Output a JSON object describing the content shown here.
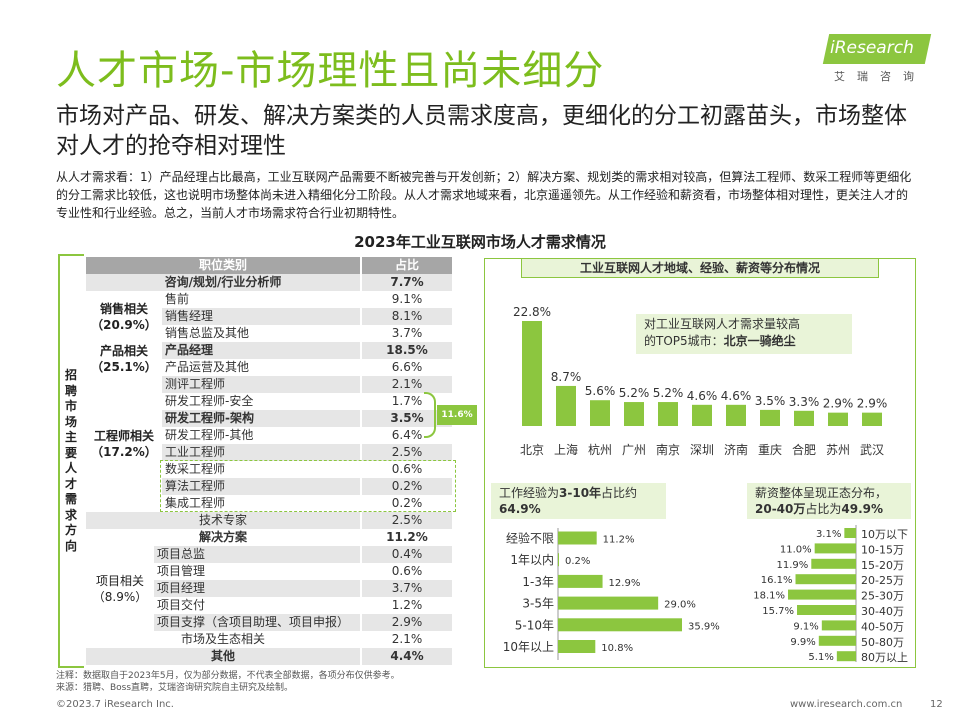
{
  "page": {
    "title": "人才市场-市场理性且尚未细分",
    "subtitle": "市场对产品、研发、解决方案类的人员需求度高，更细化的分工初露苗头，市场整体对人才的抢夺相对理性",
    "description": "从人才需求看：1）产品经理占比最高，工业互联网产品需要不断被完善与开发创新；2）解决方案、规划类的需求相对较高，但算法工程师、数采工程师等更细化的分工需求比较低，这也说明市场整体尚未进入精细化分工阶段。从人才需求地域来看，北京遥遥领先。从工作经验和薪资看，市场整体相对理性，更关注人才的专业性和行业经验。总之，当前人才市场需求符合行业初期特性。",
    "main_title": "2023年工业互联网市场人才需求情况",
    "note": "注释：数据取自于2023年5月，仅为部分数据，不代表全部数据，各项分布仅供参考。",
    "source": "来源：猎聘、Boss直聘，艾瑞咨询研究院自主研究及绘制。",
    "footer_left": "©2023.7 iResearch Inc.",
    "footer_right": "www.iresearch.com.cn",
    "page_number": "12",
    "logo_text": "iResearch",
    "logo_cn": "艾瑞咨询",
    "accent_color": "#8cc63f",
    "title_color": "#7dbd1d"
  },
  "table": {
    "side_label": "招聘市场主要人才需求方向",
    "header_category": "职位类别",
    "header_share": "占比",
    "groups": [
      {
        "label": "销售相关\n（20.9%）"
      },
      {
        "label": "产品相关\n（25.1%）"
      },
      {
        "label": "工程师相关\n（17.2%）"
      },
      {
        "label": "项目相关\n（8.9%）"
      }
    ],
    "rows": [
      {
        "name": "咨询/规划/行业分析师",
        "value": "7.7%"
      },
      {
        "name": "售前",
        "value": "9.1%"
      },
      {
        "name": "销售经理",
        "value": "8.1%"
      },
      {
        "name": "销售总监及其他",
        "value": "3.7%"
      },
      {
        "name": "产品经理",
        "value": "18.5%"
      },
      {
        "name": "产品运营及其他",
        "value": "6.6%"
      },
      {
        "name": "测评工程师",
        "value": "2.1%"
      },
      {
        "name": "研发工程师-安全",
        "value": "1.7%"
      },
      {
        "name": "研发工程师-架构",
        "value": "3.5%"
      },
      {
        "name": "研发工程师-其他",
        "value": "6.4%"
      },
      {
        "name": "工业工程师",
        "value": "2.5%"
      },
      {
        "name": "数采工程师",
        "value": "0.6%"
      },
      {
        "name": "算法工程师",
        "value": "0.2%"
      },
      {
        "name": "集成工程师",
        "value": "0.2%"
      },
      {
        "name": "技术专家",
        "value": "2.5%"
      },
      {
        "name": "解决方案",
        "value": "11.2%"
      },
      {
        "name": "项目总监",
        "value": "0.4%"
      },
      {
        "name": "项目管理",
        "value": "0.6%"
      },
      {
        "name": "项目经理",
        "value": "3.7%"
      },
      {
        "name": "项目交付",
        "value": "1.2%"
      },
      {
        "name": "项目支撑（含项目助理、项目申报）",
        "value": "2.9%"
      },
      {
        "name": "市场及生态相关",
        "value": "2.1%"
      },
      {
        "name": "其他",
        "value": "4.4%"
      }
    ],
    "brace_label": "11.6%"
  },
  "chart_data": [
    {
      "type": "bar",
      "title": "工业互联网人才地域、经验、薪资等分布情况",
      "categories": [
        "北京",
        "上海",
        "杭州",
        "广州",
        "南京",
        "深圳",
        "济南",
        "重庆",
        "合肥",
        "苏州",
        "武汉"
      ],
      "values": [
        22.8,
        8.7,
        5.6,
        5.2,
        5.2,
        4.6,
        4.6,
        3.5,
        3.3,
        2.9,
        2.9
      ],
      "unit": "%",
      "annotation": {
        "line1": "对工业互联网人才需求量较高",
        "line2_prefix": "的TOP5城市：",
        "line2_bold": "北京一骑绝尘"
      },
      "bar_color": "#8cc63f"
    },
    {
      "type": "bar",
      "orientation": "horizontal",
      "title_prefix": "工作经验为",
      "title_bold1": "3-10年",
      "title_mid": "占比约",
      "title_bold2": "64.9%",
      "categories": [
        "经验不限",
        "1年以内",
        "1-3年",
        "3-5年",
        "5-10年",
        "10年以上"
      ],
      "values": [
        11.2,
        0.2,
        12.9,
        29.0,
        35.9,
        10.8
      ],
      "unit": "%",
      "bar_color": "#8cc63f"
    },
    {
      "type": "bar",
      "orientation": "horizontal-left",
      "title_prefix": "薪资整体呈现正态分布，",
      "title_bold1": "20-40万",
      "title_mid": "占比为",
      "title_bold2": "49.9%",
      "categories": [
        "10万以下",
        "10-15万",
        "15-20万",
        "20-25万",
        "25-30万",
        "30-40万",
        "40-50万",
        "50-80万",
        "80万以上"
      ],
      "values": [
        3.1,
        11.0,
        11.9,
        16.1,
        18.1,
        15.7,
        9.1,
        9.9,
        5.1
      ],
      "unit": "%",
      "bar_color": "#8cc63f"
    }
  ]
}
